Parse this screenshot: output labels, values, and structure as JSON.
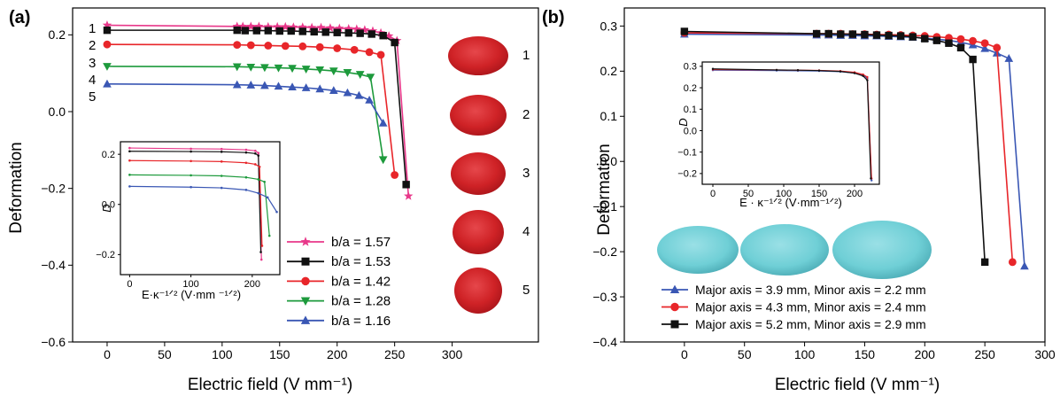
{
  "panels": {
    "a": {
      "label": "(a)",
      "xlabel": "Electric field (V mm⁻¹)",
      "ylabel": "Deformation",
      "droplet_numbers": [
        "1",
        "2",
        "3",
        "4",
        "5"
      ],
      "curve_numbers": [
        "1",
        "2",
        "3",
        "4",
        "5"
      ],
      "droplet_color": "#d42a2e",
      "inset": {
        "xlabel": "E·κ⁻¹ᐟ² (V·mm ⁻¹ᐟ²)",
        "ylabel": "D"
      }
    },
    "b": {
      "label": "(b)",
      "xlabel": "Electric field (V mm⁻¹)",
      "ylabel": "Deformation",
      "droplet_color": "#6fcfd6",
      "inset": {
        "xlabel": "E · κ⁻¹ᐟ² (V·mm⁻¹ᐟ²)",
        "ylabel": "D"
      }
    }
  },
  "chart_data": [
    {
      "type": "line",
      "panel": "a",
      "xlabel": "Electric field (V mm⁻¹)",
      "ylabel": "Deformation",
      "xlim": [
        -30,
        375
      ],
      "ylim": [
        -0.6,
        0.27
      ],
      "xticks": [
        0,
        50,
        100,
        150,
        200,
        250,
        300
      ],
      "yticks": [
        -0.6,
        -0.4,
        -0.2,
        0.0,
        0.2
      ],
      "ytick_labels": [
        "−0.6",
        "−0.4",
        "−0.2",
        "0.0",
        "0.2"
      ],
      "legend_position": "bottom-right",
      "series": [
        {
          "name": "b/a =  1.57",
          "color": "#e8388a",
          "marker": "star",
          "x": [
            0,
            113,
            118,
            125,
            132,
            140,
            148,
            155,
            162,
            170,
            178,
            186,
            194,
            202,
            210,
            217,
            224,
            231,
            238,
            245,
            252,
            262
          ],
          "y": [
            0.225,
            0.222,
            0.222,
            0.222,
            0.222,
            0.221,
            0.221,
            0.221,
            0.22,
            0.22,
            0.219,
            0.219,
            0.218,
            0.217,
            0.216,
            0.215,
            0.213,
            0.21,
            0.205,
            0.197,
            0.185,
            -0.22
          ]
        },
        {
          "name": "b/a =  1.53",
          "color": "#111111",
          "marker": "square",
          "x": [
            0,
            113,
            120,
            130,
            140,
            150,
            160,
            170,
            180,
            190,
            200,
            210,
            220,
            230,
            240,
            250,
            260
          ],
          "y": [
            0.212,
            0.212,
            0.211,
            0.211,
            0.211,
            0.21,
            0.21,
            0.209,
            0.208,
            0.207,
            0.206,
            0.205,
            0.204,
            0.202,
            0.198,
            0.18,
            -0.19
          ]
        },
        {
          "name": "b/a =  1.42",
          "color": "#e8262a",
          "marker": "circle",
          "x": [
            0,
            113,
            125,
            140,
            155,
            170,
            185,
            200,
            215,
            228,
            238,
            250
          ],
          "y": [
            0.175,
            0.174,
            0.173,
            0.172,
            0.171,
            0.17,
            0.168,
            0.165,
            0.161,
            0.155,
            0.148,
            -0.165
          ]
        },
        {
          "name": "b/a =  1.28",
          "color": "#1d9a3c",
          "marker": "triangle-down",
          "x": [
            0,
            113,
            125,
            137,
            149,
            161,
            173,
            185,
            197,
            209,
            220,
            229,
            240
          ],
          "y": [
            0.118,
            0.117,
            0.116,
            0.115,
            0.114,
            0.113,
            0.111,
            0.109,
            0.106,
            0.102,
            0.097,
            0.09,
            -0.125
          ]
        },
        {
          "name": "b/a =  1.16",
          "color": "#3a57b4",
          "marker": "triangle-up",
          "x": [
            0,
            113,
            125,
            137,
            149,
            161,
            173,
            185,
            197,
            209,
            219,
            228,
            240
          ],
          "y": [
            0.072,
            0.07,
            0.069,
            0.068,
            0.066,
            0.064,
            0.062,
            0.059,
            0.055,
            0.049,
            0.042,
            0.03,
            -0.03
          ]
        }
      ]
    },
    {
      "type": "line",
      "panel": "a-inset",
      "xlabel": "E·κ⁻¹ᐟ² (V·mm ⁻¹ᐟ²)",
      "ylabel": "D",
      "xlim": [
        -15,
        245
      ],
      "ylim": [
        -0.28,
        0.25
      ],
      "xticks": [
        0,
        100,
        200
      ],
      "yticks": [
        -0.2,
        0.0,
        0.2
      ],
      "ytick_labels": [
        "−0.2",
        "0.0",
        "0.2"
      ],
      "series": [
        {
          "name": "1.57",
          "color": "#e8388a",
          "x": [
            0,
            100,
            150,
            190,
            205,
            210,
            215
          ],
          "y": [
            0.225,
            0.222,
            0.221,
            0.218,
            0.214,
            0.205,
            -0.22
          ]
        },
        {
          "name": "1.53",
          "color": "#111111",
          "x": [
            0,
            100,
            150,
            190,
            205,
            210,
            214
          ],
          "y": [
            0.212,
            0.211,
            0.21,
            0.207,
            0.203,
            0.195,
            -0.19
          ]
        },
        {
          "name": "1.42",
          "color": "#e8262a",
          "x": [
            0,
            100,
            150,
            190,
            205,
            212,
            216
          ],
          "y": [
            0.175,
            0.173,
            0.171,
            0.166,
            0.16,
            0.15,
            -0.165
          ]
        },
        {
          "name": "1.28",
          "color": "#1d9a3c",
          "x": [
            0,
            100,
            150,
            190,
            210,
            220,
            228
          ],
          "y": [
            0.118,
            0.116,
            0.114,
            0.108,
            0.1,
            0.09,
            -0.125
          ]
        },
        {
          "name": "1.16",
          "color": "#3a57b4",
          "x": [
            0,
            100,
            150,
            190,
            210,
            225,
            240
          ],
          "y": [
            0.072,
            0.069,
            0.066,
            0.058,
            0.045,
            0.028,
            -0.03
          ]
        }
      ]
    },
    {
      "type": "line",
      "panel": "b",
      "xlabel": "Electric field (V mm⁻¹)",
      "ylabel": "Deformation",
      "xlim": [
        -50,
        300
      ],
      "ylim": [
        -0.4,
        0.34
      ],
      "xticks": [
        0,
        50,
        100,
        150,
        200,
        250,
        300
      ],
      "yticks": [
        -0.4,
        -0.3,
        -0.2,
        -0.1,
        0.0,
        0.1,
        0.2,
        0.3
      ],
      "ytick_labels": [
        "−0.4",
        "−0.3",
        "−0.2",
        "−0.1",
        "0.0",
        "0.1",
        "0.2",
        "0.3"
      ],
      "legend_position": "bottom-left",
      "series": [
        {
          "name": "Major axis = 3.9 mm, Minor axis = 2.2 mm",
          "color": "#3a57b4",
          "marker": "triangle-up",
          "x": [
            0,
            110,
            120,
            130,
            140,
            150,
            160,
            170,
            180,
            190,
            200,
            210,
            220,
            230,
            240,
            250,
            260,
            270,
            283
          ],
          "y": [
            0.282,
            0.28,
            0.28,
            0.279,
            0.279,
            0.278,
            0.278,
            0.277,
            0.276,
            0.275,
            0.273,
            0.271,
            0.268,
            0.264,
            0.258,
            0.25,
            0.24,
            0.228,
            -0.232
          ]
        },
        {
          "name": "Major axis = 4.3 mm, Minor axis = 2.4 mm",
          "color": "#e8262a",
          "marker": "circle",
          "x": [
            0,
            110,
            120,
            130,
            140,
            150,
            160,
            170,
            180,
            190,
            200,
            210,
            220,
            230,
            240,
            250,
            260,
            273
          ],
          "y": [
            0.285,
            0.283,
            0.283,
            0.283,
            0.282,
            0.282,
            0.281,
            0.281,
            0.28,
            0.279,
            0.278,
            0.276,
            0.274,
            0.271,
            0.267,
            0.262,
            0.252,
            -0.223
          ]
        },
        {
          "name": "Major axis = 5.2 mm, Minor axis = 2.9 mm",
          "color": "#111111",
          "marker": "square",
          "x": [
            0,
            110,
            120,
            130,
            140,
            150,
            160,
            170,
            180,
            190,
            200,
            210,
            220,
            230,
            240,
            250
          ],
          "y": [
            0.288,
            0.283,
            0.283,
            0.282,
            0.282,
            0.281,
            0.28,
            0.279,
            0.278,
            0.276,
            0.272,
            0.268,
            0.262,
            0.252,
            0.226,
            -0.223
          ]
        }
      ]
    },
    {
      "type": "line",
      "panel": "b-inset",
      "xlabel": "E · κ⁻¹ᐟ² (V·mm⁻¹ᐟ²)",
      "ylabel": "D",
      "xlim": [
        -15,
        235
      ],
      "ylim": [
        -0.25,
        0.32
      ],
      "xticks": [
        0,
        50,
        100,
        150,
        200
      ],
      "yticks": [
        -0.2,
        -0.1,
        0.0,
        0.1,
        0.2,
        0.3
      ],
      "ytick_labels": [
        "−0.2",
        "−0.1",
        "0.0",
        "0.1",
        "0.2",
        "0.3"
      ],
      "series": [
        {
          "name": "3.9",
          "color": "#3a57b4",
          "x": [
            0,
            90,
            120,
            150,
            180,
            200,
            212,
            218,
            224
          ],
          "y": [
            0.282,
            0.28,
            0.279,
            0.278,
            0.275,
            0.268,
            0.258,
            0.245,
            -0.232
          ]
        },
        {
          "name": "4.3",
          "color": "#e8262a",
          "x": [
            0,
            90,
            120,
            150,
            180,
            200,
            212,
            218,
            224
          ],
          "y": [
            0.285,
            0.283,
            0.282,
            0.281,
            0.278,
            0.272,
            0.262,
            0.25,
            -0.223
          ]
        },
        {
          "name": "5.2",
          "color": "#111111",
          "x": [
            0,
            90,
            120,
            150,
            180,
            200,
            212,
            218,
            223
          ],
          "y": [
            0.288,
            0.283,
            0.282,
            0.28,
            0.276,
            0.268,
            0.255,
            0.235,
            -0.223
          ]
        }
      ]
    }
  ]
}
